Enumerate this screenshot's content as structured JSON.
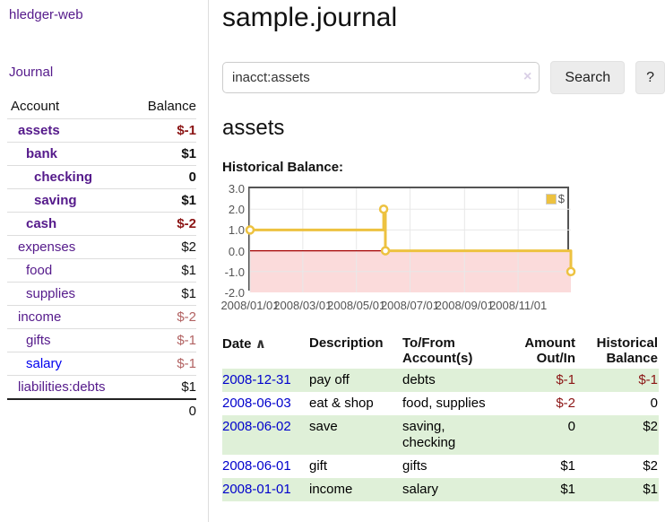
{
  "colors": {
    "accent_purple": "#551a8b",
    "link_blue": "#0000cc",
    "negative_dark": "#8b1414",
    "negative_light": "#b26262",
    "row_shade_green": "#dff0d8",
    "chart_series_yellow": "#edc240"
  },
  "app": {
    "brand": "hledger-web"
  },
  "sidebar": {
    "nav_journal": "Journal",
    "accounts": {
      "header_account": "Account",
      "header_balance": "Balance",
      "rows": [
        {
          "account": "assets",
          "balance": "$-1"
        },
        {
          "account": "bank",
          "balance": "$1"
        },
        {
          "account": "checking",
          "balance": "0"
        },
        {
          "account": "saving",
          "balance": "$1"
        },
        {
          "account": "cash",
          "balance": "$-2"
        },
        {
          "account": "expenses",
          "balance": "$2"
        },
        {
          "account": "food",
          "balance": "$1"
        },
        {
          "account": "supplies",
          "balance": "$1"
        },
        {
          "account": "income",
          "balance": "$-2"
        },
        {
          "account": "gifts",
          "balance": "$-1"
        },
        {
          "account": "salary",
          "balance": "$-1"
        },
        {
          "account": "liabilities:debts",
          "balance": "$1"
        }
      ],
      "total": "0"
    }
  },
  "main": {
    "title": "sample.journal",
    "search": {
      "value": "inacct:assets",
      "clear_label": "×",
      "search_button": "Search",
      "help_button": "?"
    },
    "account_heading": "assets",
    "section_heading": "Historical Balance:"
  },
  "chart_data": {
    "type": "line",
    "title": "Historical Balance",
    "step": true,
    "x_range": [
      "2008-01-01",
      "2008-12-31"
    ],
    "ylim": [
      -2,
      3
    ],
    "x_ticks": [
      {
        "date": "2008-01-01",
        "label": "2008/01/01"
      },
      {
        "date": "2008-03-01",
        "label": "2008/03/01"
      },
      {
        "date": "2008-05-01",
        "label": "2008/05/01"
      },
      {
        "date": "2008-07-01",
        "label": "2008/07/01"
      },
      {
        "date": "2008-09-01",
        "label": "2008/09/01"
      },
      {
        "date": "2008-11-01",
        "label": "2008/11/01"
      }
    ],
    "y_ticks": [
      {
        "value": 3,
        "label": "3.0"
      },
      {
        "value": 2,
        "label": "2.0"
      },
      {
        "value": 1,
        "label": "1.0"
      },
      {
        "value": 0,
        "label": "0.0"
      },
      {
        "value": -1,
        "label": "-1.0"
      },
      {
        "value": -2,
        "label": "-2.0"
      }
    ],
    "series": [
      {
        "name": "$",
        "color": "#edc240",
        "points": [
          [
            "2008-01-01",
            1
          ],
          [
            "2008-06-01",
            2
          ],
          [
            "2008-06-03",
            0
          ],
          [
            "2008-12-31",
            -1
          ]
        ]
      }
    ],
    "grid": true,
    "grid_color": "#e8e8e8",
    "zero_line_color": "#a40000",
    "negative_region_color": "#fbdbdb",
    "legend_position": "top-right"
  },
  "register": {
    "headers": {
      "date_label": "Date",
      "date_sort_indicator": "∧",
      "description": "Description",
      "tofrom": "To/From\nAccount(s)",
      "amount": "Amount\nOut/In",
      "balance": "Historical\nBalance"
    },
    "rows": [
      {
        "date": "2008-12-31",
        "description": "pay off",
        "accounts": "debts",
        "amount": "$-1",
        "balance": "$-1"
      },
      {
        "date": "2008-06-03",
        "description": "eat & shop",
        "accounts": "food, supplies",
        "amount": "$-2",
        "balance": "0"
      },
      {
        "date": "2008-06-02",
        "description": "save",
        "accounts": "saving,\nchecking",
        "amount": "0",
        "balance": "$2"
      },
      {
        "date": "2008-06-01",
        "description": "gift",
        "accounts": "gifts",
        "amount": "$1",
        "balance": "$2"
      },
      {
        "date": "2008-01-01",
        "description": "income",
        "accounts": "salary",
        "amount": "$1",
        "balance": "$1"
      }
    ]
  }
}
